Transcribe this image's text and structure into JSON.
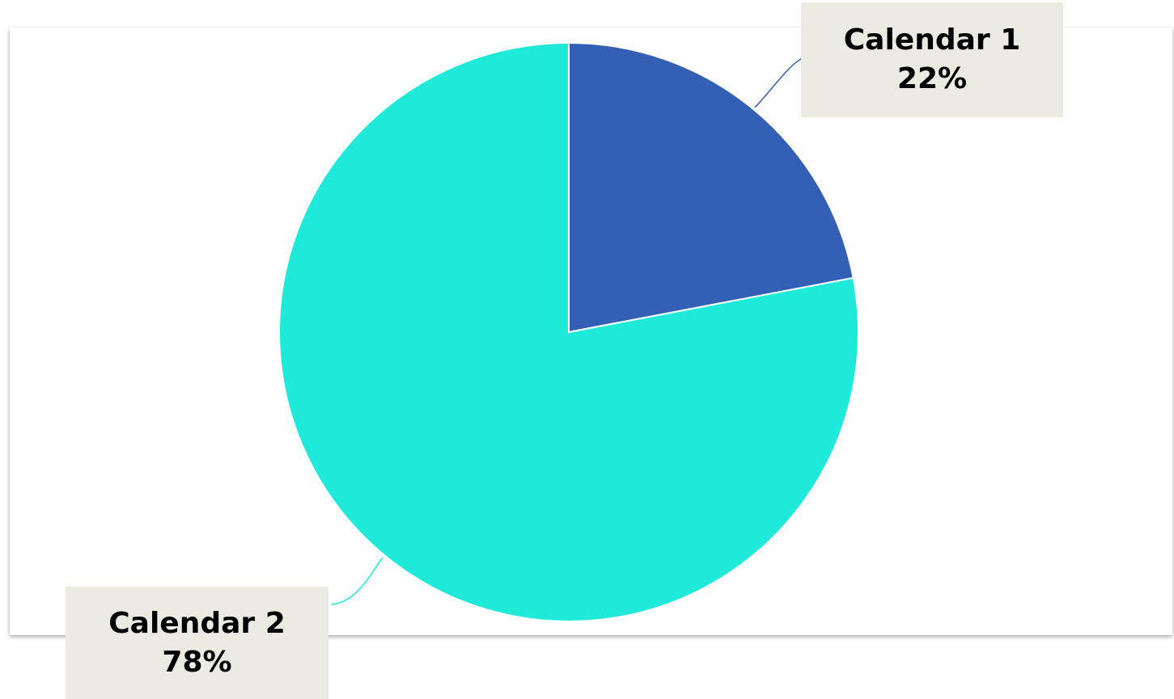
{
  "chart_data": {
    "type": "pie",
    "start_angle_deg": 0,
    "direction": "clockwise",
    "slices": [
      {
        "label": "Calendar 1",
        "value": 22,
        "value_label": "22%",
        "color": "#335fb5"
      },
      {
        "label": "Calendar 2",
        "value": 78,
        "value_label": "78%",
        "color": "#1fead9"
      }
    ],
    "slice_border_color": "#ffffff",
    "legend": "none",
    "callout_background": "#ecebe2"
  }
}
